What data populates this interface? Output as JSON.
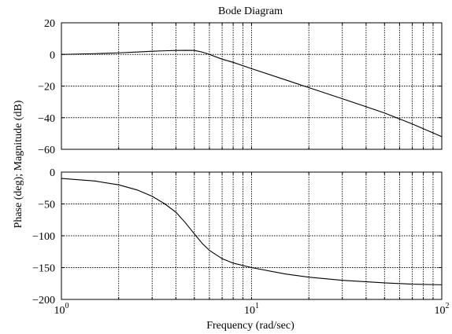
{
  "chart_data": {
    "type": "line",
    "title": "Bode Diagram",
    "xlabel": "Frequency (rad/sec)",
    "ylabel": "Phase (deg); Magnitude (dB)",
    "xscale": "log",
    "xlim": [
      1,
      100
    ],
    "grid": true,
    "x_ticks": [
      {
        "value": 1,
        "base": "10",
        "exp": "0"
      },
      {
        "value": 10,
        "base": "10",
        "exp": "1"
      },
      {
        "value": 100,
        "base": "10",
        "exp": "2"
      }
    ],
    "panels": [
      {
        "id": "magnitude",
        "ylim": [
          -60,
          20
        ],
        "yticks": [
          20,
          0,
          -20,
          -40,
          -60
        ],
        "ytick_labels": [
          "20",
          "0",
          "−20",
          "−40",
          "−60"
        ],
        "series": [
          {
            "x": [
              1,
              1.5,
              2,
              2.5,
              3,
              3.5,
              4,
              4.5,
              5,
              5.5,
              6,
              7,
              8,
              10,
              15,
              20,
              30,
              50,
              70,
              100
            ],
            "y": [
              0,
              0.5,
              1,
              1.5,
              2,
              2.3,
              2.5,
              2.6,
              2.5,
              1.5,
              0,
              -3,
              -5,
              -9,
              -16,
              -21,
              -28,
              -37,
              -44,
              -52
            ]
          }
        ]
      },
      {
        "id": "phase",
        "ylim": [
          -200,
          0
        ],
        "yticks": [
          0,
          -50,
          -100,
          -150,
          -200
        ],
        "ytick_labels": [
          "0",
          "−50",
          "−100",
          "−150",
          "−200"
        ],
        "series": [
          {
            "x": [
              1,
              1.5,
              2,
              2.5,
              3,
              3.5,
              4,
              4.5,
              5,
              5.5,
              6,
              7,
              8,
              10,
              15,
              20,
              30,
              50,
              70,
              100
            ],
            "y": [
              -10,
              -14,
              -20,
              -28,
              -38,
              -50,
              -63,
              -80,
              -97,
              -112,
              -123,
              -136,
              -143,
              -150,
              -160,
              -165,
              -170,
              -174,
              -176,
              -177
            ]
          }
        ]
      }
    ]
  }
}
